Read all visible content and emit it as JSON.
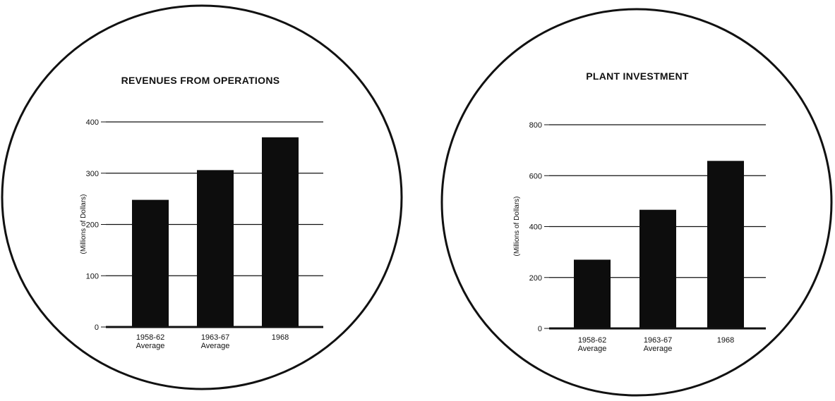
{
  "colors": {
    "ink": "#111111",
    "bar": "#0d0d0d",
    "background": "#ffffff"
  },
  "chart_data": [
    {
      "type": "bar",
      "title": "REVENUES FROM OPERATIONS",
      "ylabel": "(Millions of Dollars)",
      "xlabel": "",
      "categories": [
        [
          "1958-62",
          "Average"
        ],
        [
          "1963-67",
          "Average"
        ],
        [
          "1968"
        ]
      ],
      "values": [
        248,
        306,
        370
      ],
      "ylim": [
        0,
        400
      ],
      "yticks": [
        0,
        100,
        200,
        300,
        400
      ],
      "grid": true,
      "legend": "none"
    },
    {
      "type": "bar",
      "title": "PLANT INVESTMENT",
      "ylabel": "(Millions of Dollars)",
      "xlabel": "",
      "categories": [
        [
          "1958-62",
          "Average"
        ],
        [
          "1963-67",
          "Average"
        ],
        [
          "1968"
        ]
      ],
      "values": [
        270,
        466,
        658
      ],
      "ylim": [
        0,
        800
      ],
      "yticks": [
        0,
        200,
        400,
        600,
        800
      ],
      "grid": true,
      "legend": "none"
    }
  ]
}
